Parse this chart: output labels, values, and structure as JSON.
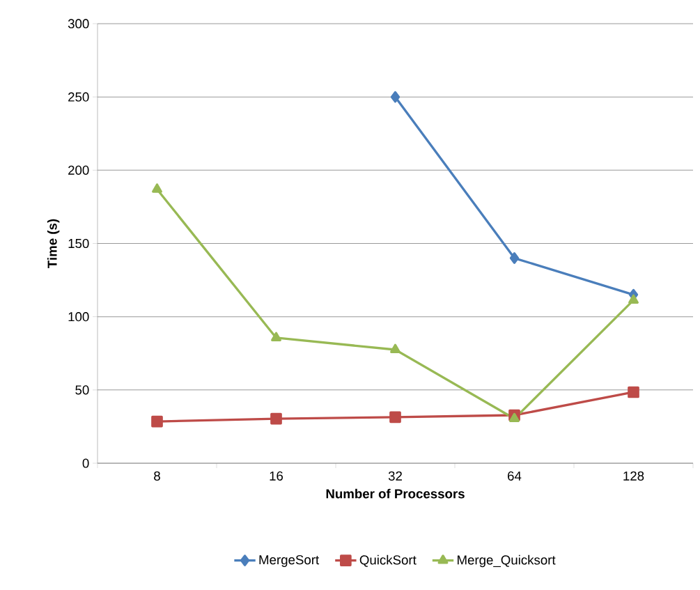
{
  "chart_data": {
    "type": "line",
    "xlabel": "Number of Processors",
    "ylabel": "Time (s)",
    "categories": [
      "8",
      "16",
      "32",
      "64",
      "128"
    ],
    "series": [
      {
        "name": "MergeSort",
        "color": "#4a7ebb",
        "marker": "diamond",
        "values": [
          null,
          null,
          250,
          140,
          115
        ]
      },
      {
        "name": "QuickSort",
        "color": "#be4b48",
        "marker": "square",
        "values": [
          28.5,
          30.4,
          31.4,
          32.8,
          48.5
        ]
      },
      {
        "name": "Merge_Quicksort",
        "color": "#98b954",
        "marker": "triangle",
        "values": [
          187,
          85.6,
          77.5,
          30.4,
          111.3
        ]
      }
    ],
    "ylim": [
      0,
      300
    ],
    "yticks": [
      0,
      50,
      100,
      150,
      200,
      250,
      300
    ],
    "grid": "y",
    "legend": "bottom",
    "line_style": "solid"
  }
}
